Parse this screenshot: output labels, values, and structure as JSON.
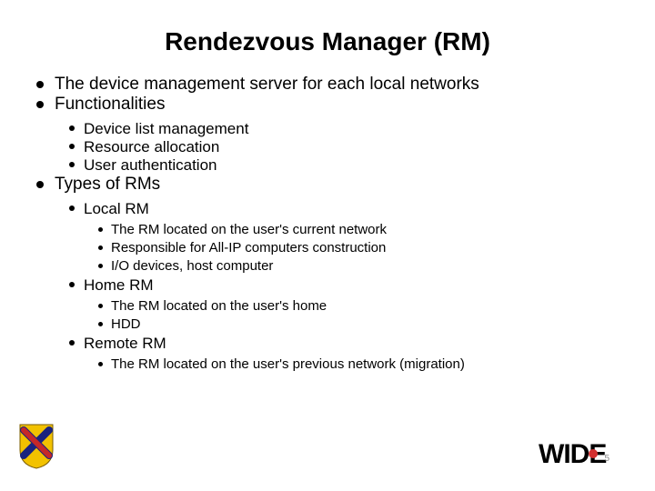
{
  "title": "Rendezvous Manager (RM)",
  "pageNumber": "5",
  "lvl1": [
    {
      "text": "The device management server for each local networks"
    },
    {
      "text": "Functionalities",
      "lvl2": [
        {
          "text": "Device list management"
        },
        {
          "text": "Resource allocation"
        },
        {
          "text": "User authentication"
        }
      ]
    },
    {
      "text": "Types of RMs",
      "lvl2": [
        {
          "text": "Local RM",
          "lvl3": [
            {
              "text": "The RM located on the user's current network"
            },
            {
              "text": "Responsible for All-IP computers construction"
            },
            {
              "text": "I/O devices, host computer"
            }
          ]
        },
        {
          "text": "Home RM",
          "lvl3": [
            {
              "text": "The RM located on the user's home"
            },
            {
              "text": "HDD"
            }
          ]
        },
        {
          "text": "Remote RM",
          "lvl3": [
            {
              "text": "The RM located on the user's previous network (migration)"
            }
          ]
        }
      ]
    }
  ],
  "logos": {
    "left": {
      "shield_bg": "#f2c200",
      "cross_a": "#c62828",
      "cross_b": "#1a237e"
    },
    "right": {
      "text": "WIDE",
      "dot": "#d32f2f"
    }
  }
}
